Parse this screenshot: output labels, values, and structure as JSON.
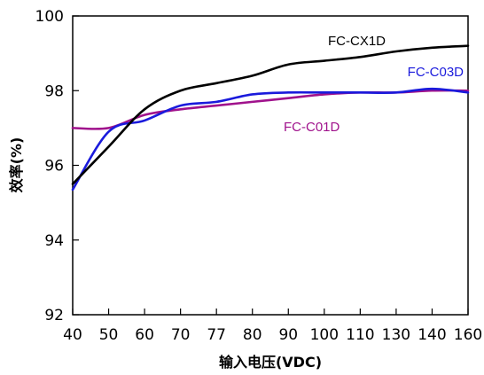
{
  "chart_data": {
    "type": "line",
    "title": "",
    "xlabel": "输入电压(VDC)",
    "ylabel": "效率(%)",
    "x_ticks": [
      "40",
      "50",
      "60",
      "70",
      "77",
      "80",
      "90",
      "100",
      "110",
      "130",
      "140",
      "160"
    ],
    "y_ticks": [
      "92",
      "94",
      "96",
      "98",
      "100"
    ],
    "ylim": [
      92,
      100
    ],
    "grid": false,
    "legend": "inline labels",
    "series": [
      {
        "name": "FC-CX1D",
        "color": "#000000",
        "x": [
          "40",
          "50",
          "60",
          "70",
          "77",
          "80",
          "90",
          "100",
          "110",
          "130",
          "140",
          "160"
        ],
        "values": [
          95.5,
          96.5,
          97.5,
          98.0,
          98.2,
          98.4,
          98.7,
          98.8,
          98.9,
          99.05,
          99.15,
          99.2
        ]
      },
      {
        "name": "FC-C03D",
        "color": "#1a1adc",
        "x": [
          "40",
          "50",
          "60",
          "70",
          "77",
          "80",
          "90",
          "100",
          "110",
          "130",
          "140",
          "160"
        ],
        "values": [
          95.35,
          96.9,
          97.2,
          97.6,
          97.7,
          97.9,
          97.95,
          97.95,
          97.95,
          97.95,
          98.05,
          97.95
        ]
      },
      {
        "name": "FC-C01D",
        "color": "#a0128c",
        "x": [
          "40",
          "50",
          "60",
          "70",
          "77",
          "80",
          "90",
          "100",
          "110",
          "130",
          "140",
          "160"
        ],
        "values": [
          97.0,
          97.0,
          97.35,
          97.5,
          97.6,
          97.7,
          97.8,
          97.9,
          97.95,
          97.95,
          98.0,
          98.0
        ]
      }
    ]
  }
}
